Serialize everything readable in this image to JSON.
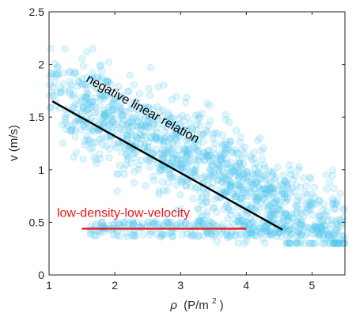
{
  "chart_data": {
    "type": "scatter",
    "title": "",
    "xlabel_symbol": "ρ",
    "xlabel_unit": "(P/m",
    "xlabel_sup": "2",
    "xlabel_close": ")",
    "ylabel": "v (m/s)",
    "xlim": [
      1,
      5.5
    ],
    "ylim": [
      0,
      2.5
    ],
    "xticks": [
      1,
      2,
      3,
      4,
      5
    ],
    "yticks": [
      0,
      0.5,
      1,
      1.5,
      2,
      2.5
    ],
    "xtick_labels": [
      "1",
      "2",
      "3",
      "4",
      "5"
    ],
    "ytick_labels": [
      "0",
      "0.5",
      "1",
      "1.5",
      "2",
      "2.5"
    ],
    "grid": false,
    "point_color": "#55c8f0",
    "point_alpha": 0.18,
    "point_count": 1500,
    "x_range": [
      1.0,
      5.5
    ],
    "y_range": [
      0.3,
      2.15
    ],
    "trend_line": {
      "label": "negative linear relation",
      "x": [
        1.05,
        4.55
      ],
      "y": [
        1.65,
        0.43
      ],
      "color": "#000000"
    },
    "low_line": {
      "label": "low-density-low-velocity",
      "x": [
        1.5,
        4.0
      ],
      "y": [
        0.44,
        0.44
      ],
      "color": "#e8141c"
    }
  }
}
